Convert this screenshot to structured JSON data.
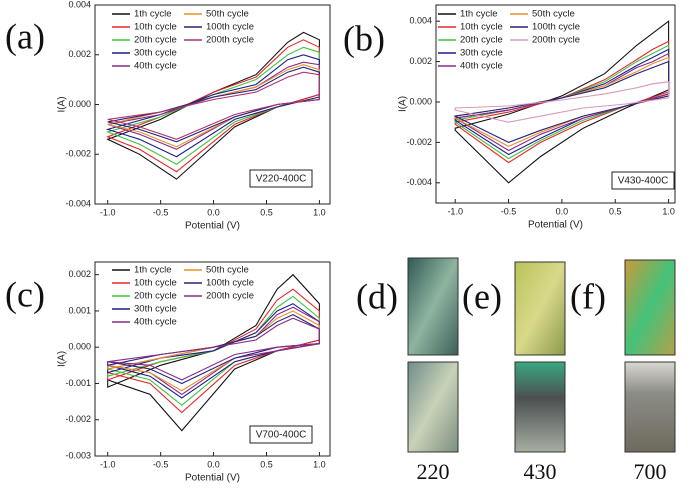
{
  "chart_data": [
    {
      "type": "line",
      "panel_label": "(a)",
      "annotation": "V220-400C",
      "x_label": "Potential (V)",
      "y_label": "I(A)",
      "x": [
        -1,
        -0.5,
        0,
        0.4,
        0.7,
        0.85,
        1,
        1,
        0.6,
        0.2,
        -0.35,
        -0.7,
        -1
      ],
      "xlim": [
        -1.12,
        1.1
      ],
      "ylim": [
        -0.004,
        0.004
      ],
      "xticks": [
        {
          "value": -1,
          "label": "-1.0"
        },
        -0.5,
        {
          "value": 0,
          "label": "0.0"
        },
        0.5,
        {
          "value": 1,
          "label": "1.0"
        }
      ],
      "yticks": [
        -0.004,
        -0.002,
        {
          "value": 0,
          "label": "0.000"
        },
        0.002,
        0.004
      ],
      "series": [
        {
          "name": "1th cycle",
          "color": "#111111",
          "values": [
            -0.0014,
            -0.0006,
            0.0005,
            0.0012,
            0.0025,
            0.0029,
            0.0026,
            0.0004,
            -0.0001,
            -0.0009,
            -0.003,
            -0.002,
            -0.0014
          ]
        },
        {
          "name": "10th cycle",
          "color": "#e8262a",
          "values": [
            -0.0013,
            -0.0005,
            0.0005,
            0.0011,
            0.0023,
            0.0026,
            0.0023,
            0.0004,
            -0.0001,
            -0.0008,
            -0.0027,
            -0.0018,
            -0.0013
          ]
        },
        {
          "name": "20th cycle",
          "color": "#3fc33f",
          "values": [
            -0.0011,
            -0.0005,
            0.0004,
            0.001,
            0.002,
            0.0023,
            0.0021,
            0.0003,
            -0.0001,
            -0.0007,
            -0.0024,
            -0.0016,
            -0.0011
          ]
        },
        {
          "name": "30th cycle",
          "color": "#1c1c8c",
          "values": [
            -0.001,
            -0.0004,
            0.0004,
            0.0008,
            0.0018,
            0.002,
            0.0018,
            0.0003,
            -0.0001,
            -0.0006,
            -0.0021,
            -0.0014,
            -0.001
          ]
        },
        {
          "name": "40th cycle",
          "color": "#8a2a8a",
          "values": [
            -0.0008,
            -0.0004,
            0.0003,
            0.0007,
            0.0015,
            0.0017,
            0.0016,
            0.0002,
            0,
            -0.0005,
            -0.0018,
            -0.0012,
            -0.0008
          ]
        },
        {
          "name": "50th cycle",
          "color": "#e8902a",
          "values": [
            -0.0008,
            -0.0003,
            0.0003,
            0.0007,
            0.0014,
            0.0016,
            0.0014,
            0.0002,
            0,
            -0.0005,
            -0.0017,
            -0.0011,
            -0.0008
          ]
        },
        {
          "name": "100th cycle",
          "color": "#23237a",
          "values": [
            -0.0007,
            -0.0003,
            0.0003,
            0.0006,
            0.0013,
            0.0015,
            0.0013,
            0.0002,
            0,
            -0.0005,
            -0.0015,
            -0.001,
            -0.0007
          ]
        },
        {
          "name": "200th cycle",
          "color": "#b0306e",
          "values": [
            -0.0006,
            -0.0003,
            0.0002,
            0.0005,
            0.0011,
            0.0013,
            0.0012,
            0.0002,
            0,
            -0.0004,
            -0.0014,
            -0.0009,
            -0.0006
          ]
        }
      ]
    },
    {
      "type": "line",
      "panel_label": "(b)",
      "annotation": "V430-400C",
      "x_label": "Potential (V)",
      "y_label": "I(A)",
      "x": [
        -1,
        -0.5,
        0,
        0.4,
        0.7,
        0.85,
        1,
        1,
        0.6,
        0.2,
        -0.2,
        -0.5,
        -1
      ],
      "xlim": [
        -1.18,
        1.06
      ],
      "ylim": [
        -0.005,
        0.0048
      ],
      "xticks": [
        {
          "value": -1,
          "label": "-1.0"
        },
        -0.5,
        {
          "value": 0,
          "label": "0.0"
        },
        0.5,
        {
          "value": 1,
          "label": "1.0"
        }
      ],
      "yticks": [
        -0.004,
        -0.002,
        {
          "value": 0,
          "label": "0.000"
        },
        0.002,
        0.004
      ],
      "series": [
        {
          "name": "1th cycle",
          "color": "#111111",
          "values": [
            -0.0013,
            -0.0006,
            0.0003,
            0.0014,
            0.0028,
            0.0034,
            0.004,
            0.0006,
            -0.0003,
            -0.0013,
            -0.0027,
            -0.004,
            -0.0014
          ]
        },
        {
          "name": "10th cycle",
          "color": "#e8262a",
          "values": [
            -0.001,
            -0.0005,
            0.0002,
            0.0011,
            0.0021,
            0.0026,
            0.003,
            0.0005,
            -0.0002,
            -0.001,
            -0.002,
            -0.003,
            -0.0011
          ]
        },
        {
          "name": "20th cycle",
          "color": "#3fc33f",
          "values": [
            -0.0009,
            -0.0004,
            0.0002,
            0.001,
            0.002,
            0.0024,
            0.0028,
            0.0004,
            -0.0002,
            -0.0009,
            -0.0019,
            -0.0028,
            -0.001
          ]
        },
        {
          "name": "30th cycle",
          "color": "#1c1c8c",
          "values": [
            -0.0008,
            -0.0004,
            0.0002,
            0.0009,
            0.0018,
            0.0022,
            0.0026,
            0.0004,
            -0.0002,
            -0.0008,
            -0.0018,
            -0.0026,
            -0.0009
          ]
        },
        {
          "name": "40th cycle",
          "color": "#8a2a8a",
          "values": [
            -0.0008,
            -0.0004,
            0.0002,
            0.0008,
            0.0017,
            0.002,
            0.0024,
            0.0004,
            -0.0002,
            -0.0008,
            -0.0016,
            -0.0024,
            -0.0008
          ]
        },
        {
          "name": "50th cycle",
          "color": "#e8902a",
          "values": [
            -0.0007,
            -0.0003,
            0.0002,
            0.0008,
            0.0015,
            0.0019,
            0.0022,
            0.0003,
            -0.0002,
            -0.0007,
            -0.0015,
            -0.0022,
            -0.0008
          ]
        },
        {
          "name": "100th cycle",
          "color": "#23237a",
          "values": [
            -0.0007,
            -0.0003,
            0.0002,
            0.0007,
            0.0014,
            0.0017,
            0.002,
            0.0003,
            -0.0002,
            -0.0007,
            -0.0014,
            -0.002,
            -0.0007
          ]
        },
        {
          "name": "200th cycle",
          "color": "#d89ab8",
          "values": [
            -0.0003,
            -0.0002,
            0.0001,
            0.0004,
            0.0007,
            0.0009,
            0.001,
            0.0002,
            -0.0001,
            -0.0003,
            -0.0007,
            -0.001,
            -0.0004
          ]
        }
      ]
    },
    {
      "type": "line",
      "panel_label": "(c)",
      "annotation": "V700-400C",
      "x_label": "Potential (V)",
      "y_label": "I(A)",
      "x": [
        -1,
        -0.5,
        0,
        0.4,
        0.6,
        0.75,
        1,
        1,
        0.6,
        0.2,
        -0.3,
        -0.6,
        -1
      ],
      "xlim": [
        -1.12,
        1.1
      ],
      "ylim": [
        -0.003,
        0.00235
      ],
      "xticks": [
        {
          "value": -1,
          "label": "-1.0"
        },
        -0.5,
        {
          "value": 0,
          "label": "0.0"
        },
        0.5,
        {
          "value": 1,
          "label": "1.0"
        }
      ],
      "yticks": [
        -0.003,
        -0.002,
        -0.001,
        {
          "value": 0,
          "label": "0.000"
        },
        0.001,
        0.002
      ],
      "series": [
        {
          "name": "1th cycle",
          "color": "#111111",
          "values": [
            -0.0011,
            -0.0005,
            -0.0001,
            0.0006,
            0.0016,
            0.002,
            0.0012,
            0.0002,
            -0.0001,
            -0.0006,
            -0.0023,
            -0.0013,
            -0.0009
          ]
        },
        {
          "name": "10th cycle",
          "color": "#e8262a",
          "values": [
            -0.0009,
            -0.0004,
            -0.0001,
            0.0005,
            0.0013,
            0.0016,
            0.001,
            0.0002,
            -0.0001,
            -0.0005,
            -0.0018,
            -0.001,
            -0.0007
          ]
        },
        {
          "name": "20th cycle",
          "color": "#3fc33f",
          "values": [
            -0.0008,
            -0.0004,
            -0.0001,
            0.0004,
            0.0011,
            0.0014,
            0.0008,
            0.0001,
            -0.0001,
            -0.0004,
            -0.0016,
            -0.0009,
            -0.0006
          ]
        },
        {
          "name": "30th cycle",
          "color": "#1c1c8c",
          "values": [
            -0.0007,
            -0.0003,
            -0.0001,
            0.0004,
            0.001,
            0.0012,
            0.0007,
            0.0001,
            -0.0001,
            -0.0004,
            -0.0014,
            -0.0008,
            -0.0005
          ]
        },
        {
          "name": "40th cycle",
          "color": "#8a2a8a",
          "values": [
            -0.0006,
            -0.0003,
            0,
            0.0003,
            0.0009,
            0.0011,
            0.0007,
            0.0001,
            -0.0001,
            -0.0003,
            -0.0013,
            -0.0007,
            -0.0005
          ]
        },
        {
          "name": "50th cycle",
          "color": "#e8902a",
          "values": [
            -0.0006,
            -0.0003,
            0,
            0.0003,
            0.0008,
            0.001,
            0.0006,
            0.0001,
            0,
            -0.0003,
            -0.0012,
            -0.0007,
            -0.0005
          ]
        },
        {
          "name": "100th cycle",
          "color": "#23237a",
          "values": [
            -0.0005,
            -0.0002,
            0,
            0.0003,
            0.0007,
            0.0009,
            0.0005,
            0.0001,
            0,
            -0.0003,
            -0.001,
            -0.0006,
            -0.0004
          ]
        },
        {
          "name": "200th cycle",
          "color": "#8a2a8a",
          "values": [
            -0.0004,
            -0.0002,
            0,
            0.0002,
            0.0006,
            0.0008,
            0.0005,
            0.0001,
            0,
            -0.0002,
            -0.0009,
            -0.0005,
            -0.0004
          ]
        }
      ]
    }
  ],
  "photos": [
    {
      "panel_label": "(d)",
      "caption": "220"
    },
    {
      "panel_label": "(e)",
      "caption": "430"
    },
    {
      "panel_label": "(f)",
      "caption": "700"
    }
  ]
}
